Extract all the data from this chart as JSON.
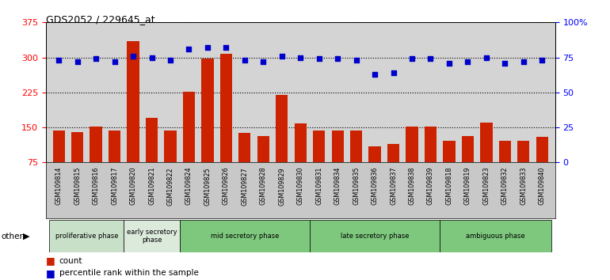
{
  "title": "GDS2052 / 229645_at",
  "samples": [
    "GSM109814",
    "GSM109815",
    "GSM109816",
    "GSM109817",
    "GSM109820",
    "GSM109821",
    "GSM109822",
    "GSM109824",
    "GSM109825",
    "GSM109826",
    "GSM109827",
    "GSM109828",
    "GSM109829",
    "GSM109830",
    "GSM109831",
    "GSM109834",
    "GSM109835",
    "GSM109836",
    "GSM109837",
    "GSM109838",
    "GSM109839",
    "GSM109818",
    "GSM109819",
    "GSM109823",
    "GSM109832",
    "GSM109833",
    "GSM109840"
  ],
  "counts": [
    143,
    140,
    152,
    143,
    335,
    170,
    143,
    227,
    297,
    308,
    138,
    132,
    220,
    158,
    143,
    143,
    143,
    110,
    115,
    152,
    152,
    122,
    132,
    160,
    122,
    122,
    130
  ],
  "percentiles": [
    73,
    72,
    74,
    72,
    76,
    75,
    73,
    81,
    82,
    82,
    73,
    72,
    76,
    75,
    74,
    74,
    73,
    63,
    64,
    74,
    74,
    71,
    72,
    75,
    71,
    72,
    73
  ],
  "ylim_left": [
    75,
    375
  ],
  "ylim_right": [
    0,
    100
  ],
  "yticks_left": [
    75,
    150,
    225,
    300,
    375
  ],
  "yticks_right": [
    0,
    25,
    50,
    75,
    100
  ],
  "bar_color": "#cc2200",
  "dot_color": "#0000cc",
  "phase_configs": [
    {
      "label": "proliferative phase",
      "start": 0,
      "end": 4,
      "color": "#c8e0c8"
    },
    {
      "label": "early secretory\nphase",
      "start": 4,
      "end": 7,
      "color": "#dceadc"
    },
    {
      "label": "mid secretory phase",
      "start": 7,
      "end": 14,
      "color": "#7ec87e"
    },
    {
      "label": "late secretory phase",
      "start": 14,
      "end": 21,
      "color": "#7ec87e"
    },
    {
      "label": "ambiguous phase",
      "start": 21,
      "end": 27,
      "color": "#7ec87e"
    }
  ],
  "legend_count_label": "count",
  "legend_pct_label": "percentile rank within the sample",
  "plot_bg": "#d4d4d4",
  "tick_bg": "#c8c8c8"
}
